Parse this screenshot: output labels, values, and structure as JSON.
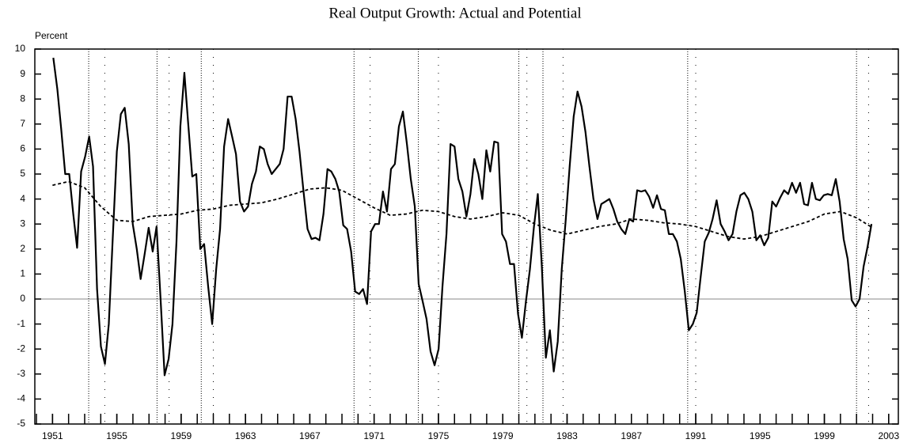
{
  "chart_data": {
    "type": "line",
    "title": "Real Output Growth: Actual and Potential",
    "ylabel": "Percent",
    "xlim": [
      1949.9,
      2003.6
    ],
    "ylim": [
      -5,
      10
    ],
    "xticks": [
      1951,
      1955,
      1959,
      1963,
      1967,
      1971,
      1975,
      1979,
      1983,
      1987,
      1991,
      1995,
      1999,
      2003
    ],
    "yticks": [
      -5,
      -4,
      -3,
      -2,
      -1,
      0,
      1,
      2,
      3,
      4,
      5,
      6,
      7,
      8,
      9,
      10
    ],
    "xminor_step": 1,
    "reference_line": 0,
    "recession_peaks": [
      1953.25,
      1957.5,
      1960.25,
      1969.75,
      1973.75,
      1980.0,
      1981.5,
      1990.5,
      2001.0
    ],
    "recession_troughs": [
      1954.25,
      1958.25,
      1961.0,
      1970.75,
      1975.0,
      1980.5,
      1982.75,
      1991.0,
      2001.75
    ],
    "series": [
      {
        "color": "#000000",
        "style": "solid",
        "x": [
          1951.05,
          1951.3,
          1951.54,
          1951.79,
          1952.04,
          1952.29,
          1952.53,
          1952.78,
          1953.03,
          1953.28,
          1953.52,
          1953.77,
          1954.01,
          1954.26,
          1954.5,
          1954.75,
          1955,
          1955.25,
          1955.49,
          1955.74,
          1955.99,
          1956.24,
          1956.48,
          1956.73,
          1956.98,
          1957.23,
          1957.47,
          1957.72,
          1957.97,
          1958.22,
          1958.46,
          1958.71,
          1958.95,
          1959.2,
          1959.44,
          1959.69,
          1959.94,
          1960.19,
          1960.43,
          1960.68,
          1960.93,
          1961.18,
          1961.42,
          1961.67,
          1961.92,
          1962.17,
          1962.41,
          1962.66,
          1962.91,
          1963.16,
          1963.4,
          1963.65,
          1963.89,
          1964.14,
          1964.38,
          1964.63,
          1964.88,
          1965.13,
          1965.37,
          1965.62,
          1965.87,
          1966.12,
          1966.36,
          1966.61,
          1966.86,
          1967.11,
          1967.35,
          1967.6,
          1967.85,
          1968.1,
          1968.34,
          1968.59,
          1968.83,
          1969.08,
          1969.32,
          1969.57,
          1969.82,
          1970.07,
          1970.31,
          1970.56,
          1970.81,
          1971.06,
          1971.3,
          1971.55,
          1971.8,
          1972.05,
          1972.29,
          1972.54,
          1972.79,
          1973.04,
          1973.28,
          1973.53,
          1973.77,
          1974.02,
          1974.26,
          1974.51,
          1974.76,
          1975.01,
          1975.25,
          1975.5,
          1975.75,
          1976,
          1976.24,
          1976.49,
          1976.74,
          1976.99,
          1977.23,
          1977.48,
          1977.73,
          1977.98,
          1978.22,
          1978.47,
          1978.71,
          1978.96,
          1979.2,
          1979.45,
          1979.7,
          1979.95,
          1980.19,
          1980.44,
          1980.69,
          1980.94,
          1981.18,
          1981.43,
          1981.68,
          1981.93,
          1982.17,
          1982.42,
          1982.67,
          1982.92,
          1983.16,
          1983.41,
          1983.65,
          1983.9,
          1984.14,
          1984.39,
          1984.64,
          1984.89,
          1985.13,
          1985.38,
          1985.63,
          1985.88,
          1986.12,
          1986.37,
          1986.62,
          1986.87,
          1987.11,
          1987.36,
          1987.61,
          1987.86,
          1988.1,
          1988.35,
          1988.59,
          1988.84,
          1989.08,
          1989.33,
          1989.58,
          1989.83,
          1990.07,
          1990.32,
          1990.57,
          1990.82,
          1991.06,
          1991.31,
          1991.56,
          1991.81,
          1992.05,
          1992.3,
          1992.55,
          1992.8,
          1993.04,
          1993.29,
          1993.53,
          1993.78,
          1994.02,
          1994.27,
          1994.52,
          1994.77,
          1995.01,
          1995.26,
          1995.51,
          1995.76,
          1996,
          1996.25,
          1996.5,
          1996.75,
          1996.99,
          1997.24,
          1997.49,
          1997.74,
          1997.98,
          1998.23,
          1998.47,
          1998.72,
          1998.96,
          1999.21,
          1999.46,
          1999.71,
          1999.95,
          2000.2,
          2000.45,
          2000.7,
          2000.94,
          2001.19,
          2001.44,
          2001.69,
          2001.93
        ],
        "values": [
          9.65,
          8.4,
          6.8,
          5.0,
          5.0,
          3.4,
          2.05,
          5.1,
          5.7,
          6.5,
          5.3,
          0.4,
          -1.9,
          -2.6,
          -1.0,
          2.5,
          5.9,
          7.4,
          7.65,
          6.2,
          3.0,
          2.0,
          0.8,
          1.8,
          2.85,
          1.9,
          2.9,
          0.0,
          -3.05,
          -2.4,
          -1.0,
          2.3,
          6.9,
          9.05,
          7.0,
          4.9,
          5.0,
          2.0,
          2.2,
          0.5,
          -1.0,
          1.2,
          2.8,
          6.1,
          7.2,
          6.5,
          5.8,
          3.9,
          3.5,
          3.7,
          4.6,
          5.1,
          6.1,
          6.0,
          5.4,
          5.0,
          5.2,
          5.4,
          6.0,
          8.1,
          8.1,
          7.2,
          5.9,
          4.3,
          2.8,
          2.4,
          2.45,
          2.35,
          3.4,
          5.2,
          5.1,
          4.8,
          4.3,
          2.95,
          2.8,
          1.9,
          0.3,
          0.2,
          0.4,
          -0.2,
          2.7,
          3.0,
          3.0,
          4.3,
          3.5,
          5.2,
          5.4,
          6.9,
          7.5,
          6.2,
          4.8,
          3.7,
          0.6,
          -0.1,
          -0.8,
          -2.1,
          -2.65,
          -2.0,
          0.5,
          2.6,
          6.2,
          6.1,
          4.8,
          4.3,
          3.3,
          4.2,
          5.6,
          5.0,
          4.0,
          5.95,
          5.1,
          6.3,
          6.25,
          2.6,
          2.3,
          1.4,
          1.4,
          -0.6,
          -1.55,
          -0.1,
          1.2,
          2.9,
          4.2,
          1.3,
          -2.35,
          -1.25,
          -2.9,
          -1.7,
          1.2,
          3.2,
          5.3,
          7.3,
          8.3,
          7.7,
          6.7,
          5.3,
          4.0,
          3.2,
          3.8,
          3.9,
          4.0,
          3.6,
          3.1,
          2.8,
          2.6,
          3.2,
          3.1,
          4.35,
          4.3,
          4.35,
          4.1,
          3.65,
          4.15,
          3.6,
          3.55,
          2.6,
          2.6,
          2.3,
          1.6,
          0.3,
          -1.25,
          -1.0,
          -0.55,
          0.9,
          2.3,
          2.65,
          3.2,
          3.95,
          3.0,
          2.7,
          2.35,
          2.6,
          3.5,
          4.15,
          4.25,
          4.0,
          3.5,
          2.35,
          2.55,
          2.15,
          2.45,
          3.9,
          3.7,
          4.05,
          4.35,
          4.2,
          4.65,
          4.25,
          4.65,
          3.8,
          3.75,
          4.65,
          4.0,
          3.95,
          4.15,
          4.2,
          4.15,
          4.8,
          3.9,
          2.4,
          1.6,
          -0.05,
          -0.3,
          0.0,
          1.3,
          2.1,
          3.0
        ]
      },
      {
        "color": "#000000",
        "style": "dashed",
        "x": [
          1951,
          1952,
          1953,
          1954,
          1955,
          1956,
          1957,
          1958,
          1959,
          1960,
          1961,
          1962,
          1963,
          1964,
          1965,
          1966,
          1967,
          1968,
          1969,
          1970,
          1971,
          1972,
          1973,
          1974,
          1975,
          1976,
          1977,
          1978,
          1979,
          1980,
          1981,
          1982,
          1983,
          1984,
          1985,
          1986,
          1987,
          1988,
          1989,
          1990,
          1991,
          1992,
          1993,
          1994,
          1995,
          1996,
          1997,
          1998,
          1999,
          2000,
          2001,
          2002
        ],
        "values": [
          4.55,
          4.7,
          4.45,
          3.7,
          3.15,
          3.1,
          3.3,
          3.35,
          3.4,
          3.55,
          3.6,
          3.75,
          3.8,
          3.85,
          4.0,
          4.2,
          4.4,
          4.45,
          4.35,
          4.0,
          3.65,
          3.35,
          3.4,
          3.55,
          3.5,
          3.3,
          3.2,
          3.3,
          3.45,
          3.35,
          3.0,
          2.75,
          2.6,
          2.75,
          2.9,
          3.0,
          3.2,
          3.15,
          3.05,
          3.0,
          2.9,
          2.7,
          2.5,
          2.4,
          2.5,
          2.7,
          2.9,
          3.1,
          3.4,
          3.5,
          3.25,
          2.85
        ]
      }
    ]
  }
}
